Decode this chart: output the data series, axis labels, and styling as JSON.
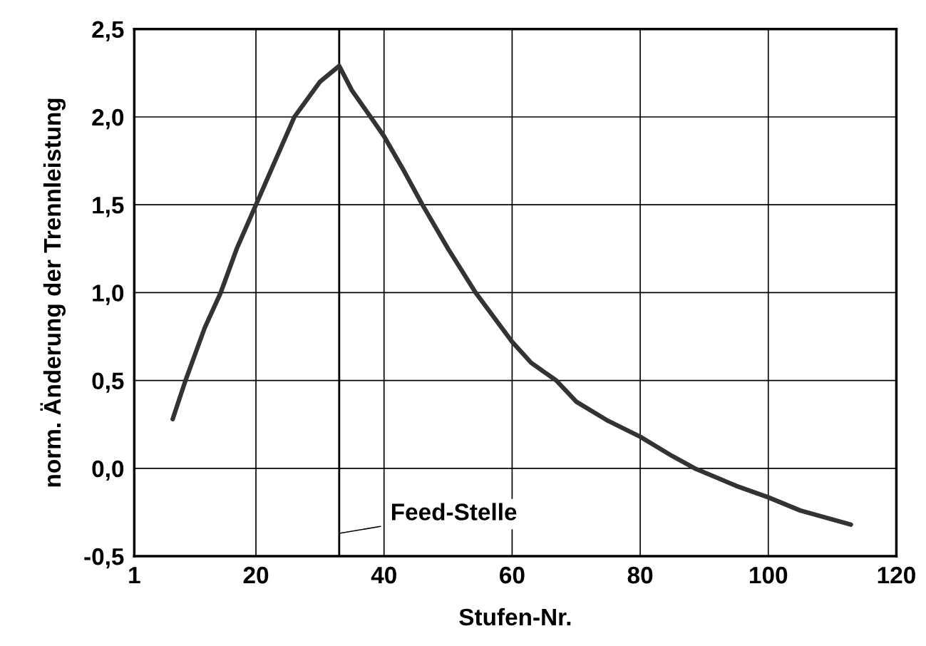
{
  "chart_data": {
    "type": "line",
    "xlabel": "Stufen-Nr.",
    "ylabel": "norm. Änderung der Trennleistung",
    "x": [
      7,
      9,
      12,
      14.5,
      17,
      20,
      23,
      26,
      30,
      33,
      35,
      37.9,
      40,
      43,
      46,
      50,
      54.3,
      60,
      63,
      66.9,
      70,
      75,
      80,
      85,
      88.5,
      95,
      100,
      105,
      112.9
    ],
    "series": [
      {
        "color": "#333333",
        "values": [
          0.28,
          0.5,
          0.8,
          1.0,
          1.25,
          1.5,
          1.75,
          2.0,
          2.2,
          2.29,
          2.15,
          2.0,
          1.89,
          1.7,
          1.5,
          1.25,
          1.0,
          0.72,
          0.6,
          0.5,
          0.38,
          0.27,
          0.18,
          0.07,
          0.0,
          -0.1,
          -0.165,
          -0.24,
          -0.32
        ]
      }
    ],
    "xlim": [
      1,
      120
    ],
    "xticks": [
      1,
      20,
      40,
      60,
      80,
      100,
      120
    ],
    "ylim": [
      -0.5,
      2.5
    ],
    "yticks": [
      {
        "value": -0.5,
        "label": "-0,5"
      },
      {
        "value": 0,
        "label": "0,0"
      },
      {
        "value": 0.5,
        "label": "0,5"
      },
      {
        "value": 1,
        "label": "1,0"
      },
      {
        "value": 1.5,
        "label": "1,5"
      },
      {
        "value": 2,
        "label": "2,0"
      },
      {
        "value": 2.5,
        "label": "2,5"
      }
    ],
    "ref_lines": [
      {
        "axis": "x",
        "value": 33,
        "label": "Feed-Stelle",
        "color": "#000000"
      }
    ],
    "grid": true,
    "legend": false,
    "marker": "none",
    "line_style": "solid"
  }
}
